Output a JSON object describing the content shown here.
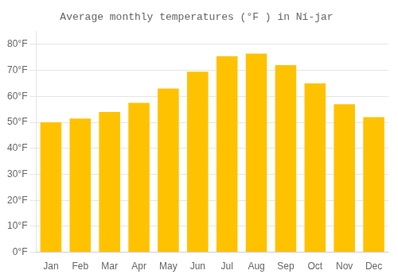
{
  "chart_data": {
    "type": "bar",
    "title": "Average monthly temperatures (°F ) in Ní‐jar",
    "categories": [
      "Jan",
      "Feb",
      "Mar",
      "Apr",
      "May",
      "Jun",
      "Jul",
      "Aug",
      "Sep",
      "Oct",
      "Nov",
      "Dec"
    ],
    "values": [
      50.0,
      51.5,
      54.0,
      57.5,
      63.0,
      69.5,
      75.5,
      76.5,
      72.0,
      65.0,
      57.0,
      52.0
    ],
    "color": "#FFC200",
    "ylim": [
      0,
      85
    ],
    "yticks": [
      {
        "value": 0,
        "label": "0°F"
      },
      {
        "value": 10,
        "label": "10°F"
      },
      {
        "value": 20,
        "label": "20°F"
      },
      {
        "value": 30,
        "label": "30°F"
      },
      {
        "value": 40,
        "label": "40°F"
      },
      {
        "value": 50,
        "label": "50°F"
      },
      {
        "value": 60,
        "label": "60°F"
      },
      {
        "value": 70,
        "label": "70°F"
      },
      {
        "value": 80,
        "label": "80°F"
      }
    ],
    "grid": true
  }
}
